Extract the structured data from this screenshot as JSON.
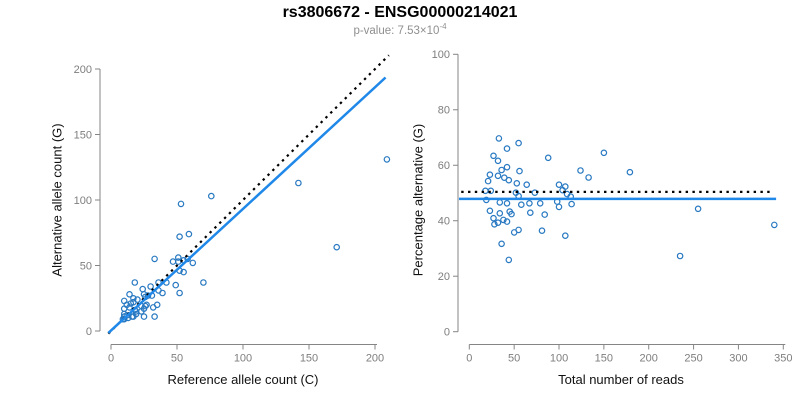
{
  "page": {
    "title": "rs3806672 - ENSG00000214021",
    "subtitle_main": "p-value: 7.53×10",
    "subtitle_exp": "-4"
  },
  "colors": {
    "title": "#000000",
    "subtitle": "#8f8f8f",
    "axis": "#858585",
    "tick_labels": "#7e7e7e",
    "axis_titles": "#111111",
    "points": "#2879c2",
    "fit_line": "#1f88e8",
    "reference_line": "#000000",
    "background": "#ffffff"
  },
  "chart_data": [
    {
      "id": "allele-count-scatter",
      "type": "scatter",
      "xlabel": "Reference allele count (C)",
      "ylabel": "Alternative allele count (G)",
      "xticks": [
        0,
        50,
        100,
        150,
        200
      ],
      "yticks": [
        0,
        50,
        100,
        150,
        200
      ],
      "xlim": [
        -8,
        218
      ],
      "ylim": [
        -8,
        218
      ],
      "grid": false,
      "points": [
        [
          10,
          23
        ],
        [
          18,
          37
        ],
        [
          14,
          28
        ],
        [
          53,
          97
        ],
        [
          33,
          55
        ],
        [
          10,
          17
        ],
        [
          12,
          20
        ],
        [
          76,
          103
        ],
        [
          52,
          72
        ],
        [
          15,
          21
        ],
        [
          17,
          25
        ],
        [
          24,
          32
        ],
        [
          59,
          74
        ],
        [
          10,
          13
        ],
        [
          14,
          18
        ],
        [
          17,
          22
        ],
        [
          20,
          24
        ],
        [
          25,
          28
        ],
        [
          30,
          34
        ],
        [
          47,
          53
        ],
        [
          51,
          56
        ],
        [
          10,
          11
        ],
        [
          9,
          9
        ],
        [
          12,
          12
        ],
        [
          26,
          26
        ],
        [
          28,
          27
        ],
        [
          36,
          37
        ],
        [
          51,
          53
        ],
        [
          55,
          54
        ],
        [
          58,
          55
        ],
        [
          10,
          9
        ],
        [
          18,
          16
        ],
        [
          23,
          19
        ],
        [
          31,
          27
        ],
        [
          36,
          31
        ],
        [
          42,
          37
        ],
        [
          52,
          46
        ],
        [
          62,
          52
        ],
        [
          13,
          10
        ],
        [
          19,
          15
        ],
        [
          26,
          19
        ],
        [
          27,
          20
        ],
        [
          39,
          29
        ],
        [
          49,
          35
        ],
        [
          55,
          45
        ],
        [
          142,
          113
        ],
        [
          16,
          11
        ],
        [
          19,
          13
        ],
        [
          23,
          15
        ],
        [
          17,
          11
        ],
        [
          25,
          17
        ],
        [
          209,
          131
        ],
        [
          35,
          20
        ],
        [
          52,
          29
        ],
        [
          32,
          18
        ],
        [
          70,
          37
        ],
        [
          25,
          11
        ],
        [
          33,
          11
        ],
        [
          171,
          64
        ]
      ],
      "fit_line": {
        "x1": -2,
        "y1": -1.5,
        "x2": 208,
        "y2": 193.5,
        "style": "solid"
      },
      "reference_line": {
        "x1": -2,
        "y1": -2,
        "x2": 210.5,
        "y2": 210.5,
        "style": "dotted"
      }
    },
    {
      "id": "percentage-scatter",
      "type": "scatter",
      "xlabel": "Total number of reads",
      "ylabel": "Percentage alternative (G)",
      "xticks": [
        0,
        50,
        100,
        150,
        200,
        250,
        300,
        350
      ],
      "yticks": [
        0,
        20,
        40,
        60,
        80,
        100
      ],
      "xlim": [
        -14,
        354
      ],
      "ylim": [
        -4,
        104
      ],
      "grid": false,
      "points": [
        [
          33,
          69.7
        ],
        [
          55,
          68
        ],
        [
          42,
          66
        ],
        [
          150,
          64.5
        ],
        [
          88,
          62.7
        ],
        [
          27,
          63.4
        ],
        [
          32,
          61.6
        ],
        [
          179,
          57.5
        ],
        [
          124,
          58.1
        ],
        [
          36,
          58.3
        ],
        [
          42,
          59.3
        ],
        [
          56,
          57.9
        ],
        [
          133,
          55.6
        ],
        [
          23,
          56.6
        ],
        [
          32,
          56.2
        ],
        [
          39,
          55.5
        ],
        [
          44,
          54.6
        ],
        [
          53,
          53.5
        ],
        [
          64,
          53
        ],
        [
          100,
          53
        ],
        [
          107,
          52.3
        ],
        [
          21,
          54.3
        ],
        [
          18,
          50.8
        ],
        [
          24,
          50.8
        ],
        [
          52,
          50.1
        ],
        [
          55,
          48.9
        ],
        [
          73,
          50.1
        ],
        [
          104,
          51
        ],
        [
          109,
          49.6
        ],
        [
          113,
          48.7
        ],
        [
          19,
          47.5
        ],
        [
          34,
          46.6
        ],
        [
          42,
          46.3
        ],
        [
          58,
          45.8
        ],
        [
          67,
          46.3
        ],
        [
          79,
          46.3
        ],
        [
          98,
          46.9
        ],
        [
          114,
          46
        ],
        [
          23,
          43.6
        ],
        [
          34,
          42.7
        ],
        [
          45,
          43.3
        ],
        [
          47,
          42.4
        ],
        [
          68,
          42.9
        ],
        [
          84,
          42.2
        ],
        [
          100,
          45
        ],
        [
          255,
          44.3
        ],
        [
          27,
          40.9
        ],
        [
          32,
          39.3
        ],
        [
          38,
          40.3
        ],
        [
          28,
          38.7
        ],
        [
          42,
          39.7
        ],
        [
          340,
          38.5
        ],
        [
          55,
          36.7
        ],
        [
          81,
          36.4
        ],
        [
          50,
          35.8
        ],
        [
          107,
          34.6
        ],
        [
          36,
          31.7
        ],
        [
          44,
          25.9
        ],
        [
          235,
          27.3
        ]
      ],
      "fit_line": {
        "x1": -11.5,
        "y1": 47.9,
        "x2": 342,
        "y2": 47.9,
        "style": "solid"
      },
      "reference_line": {
        "x1": -9,
        "y1": 50.4,
        "x2": 335,
        "y2": 50.4,
        "style": "dotted"
      }
    }
  ]
}
